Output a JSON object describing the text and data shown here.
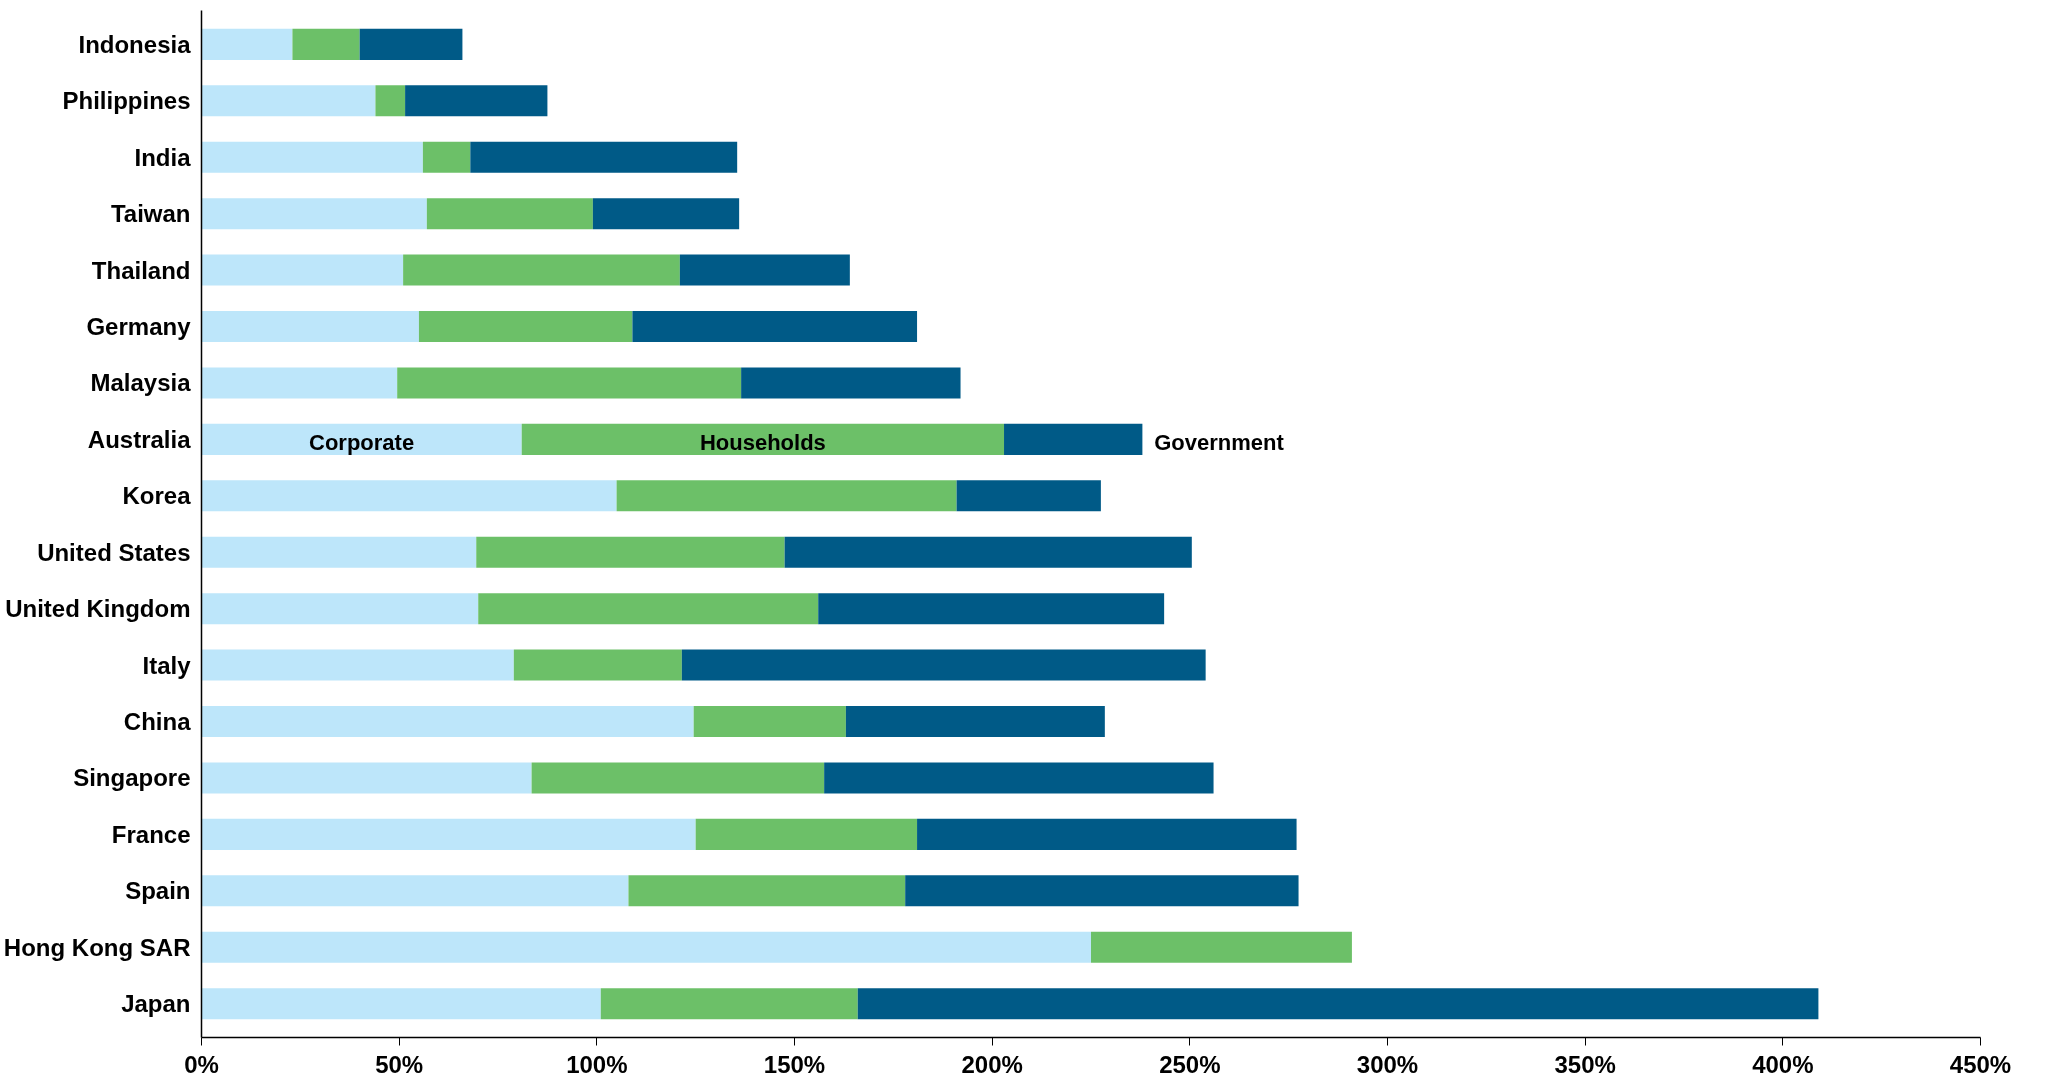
{
  "chart_data": {
    "type": "bar",
    "orientation": "horizontal",
    "stacked": true,
    "grid": false,
    "categories": [
      "Indonesia",
      "Philippines",
      "India",
      "Taiwan",
      "Thailand",
      "Germany",
      "Malaysia",
      "Australia",
      "Korea",
      "United States",
      "United Kingdom",
      "Italy",
      "China",
      "Singapore",
      "France",
      "Spain",
      "Hong Kong SAR",
      "Japan"
    ],
    "series": [
      {
        "name": "Corporate",
        "color": "#bde6fa",
        "values": [
          23,
          44,
          56,
          57,
          51,
          55,
          49.5,
          81,
          105,
          69.5,
          70,
          79,
          124.5,
          83.5,
          125,
          108,
          225,
          101
        ]
      },
      {
        "name": "Households",
        "color": "#6cc068",
        "values": [
          17,
          7.5,
          12,
          42,
          70,
          54,
          87,
          122,
          86,
          78,
          86,
          42.5,
          38.5,
          74,
          56,
          70,
          66,
          65
        ]
      },
      {
        "name": "Government",
        "color": "#005a87",
        "values": [
          26,
          36,
          67.5,
          37,
          43,
          72,
          55.5,
          35,
          36.5,
          103,
          87.5,
          132.5,
          65.5,
          98.5,
          96,
          99.5,
          null,
          243
        ]
      }
    ],
    "xlim": [
      0,
      450
    ],
    "xticks": [
      {
        "value": 0,
        "label": "0%"
      },
      {
        "value": 50,
        "label": "50%"
      },
      {
        "value": 100,
        "label": "100%"
      },
      {
        "value": 150,
        "label": "150%"
      },
      {
        "value": 200,
        "label": "200%"
      },
      {
        "value": 250,
        "label": "250%"
      },
      {
        "value": 300,
        "label": "300%"
      },
      {
        "value": 350,
        "label": "350%"
      },
      {
        "value": 400,
        "label": "400%"
      },
      {
        "value": 450,
        "label": "450%"
      }
    ]
  }
}
